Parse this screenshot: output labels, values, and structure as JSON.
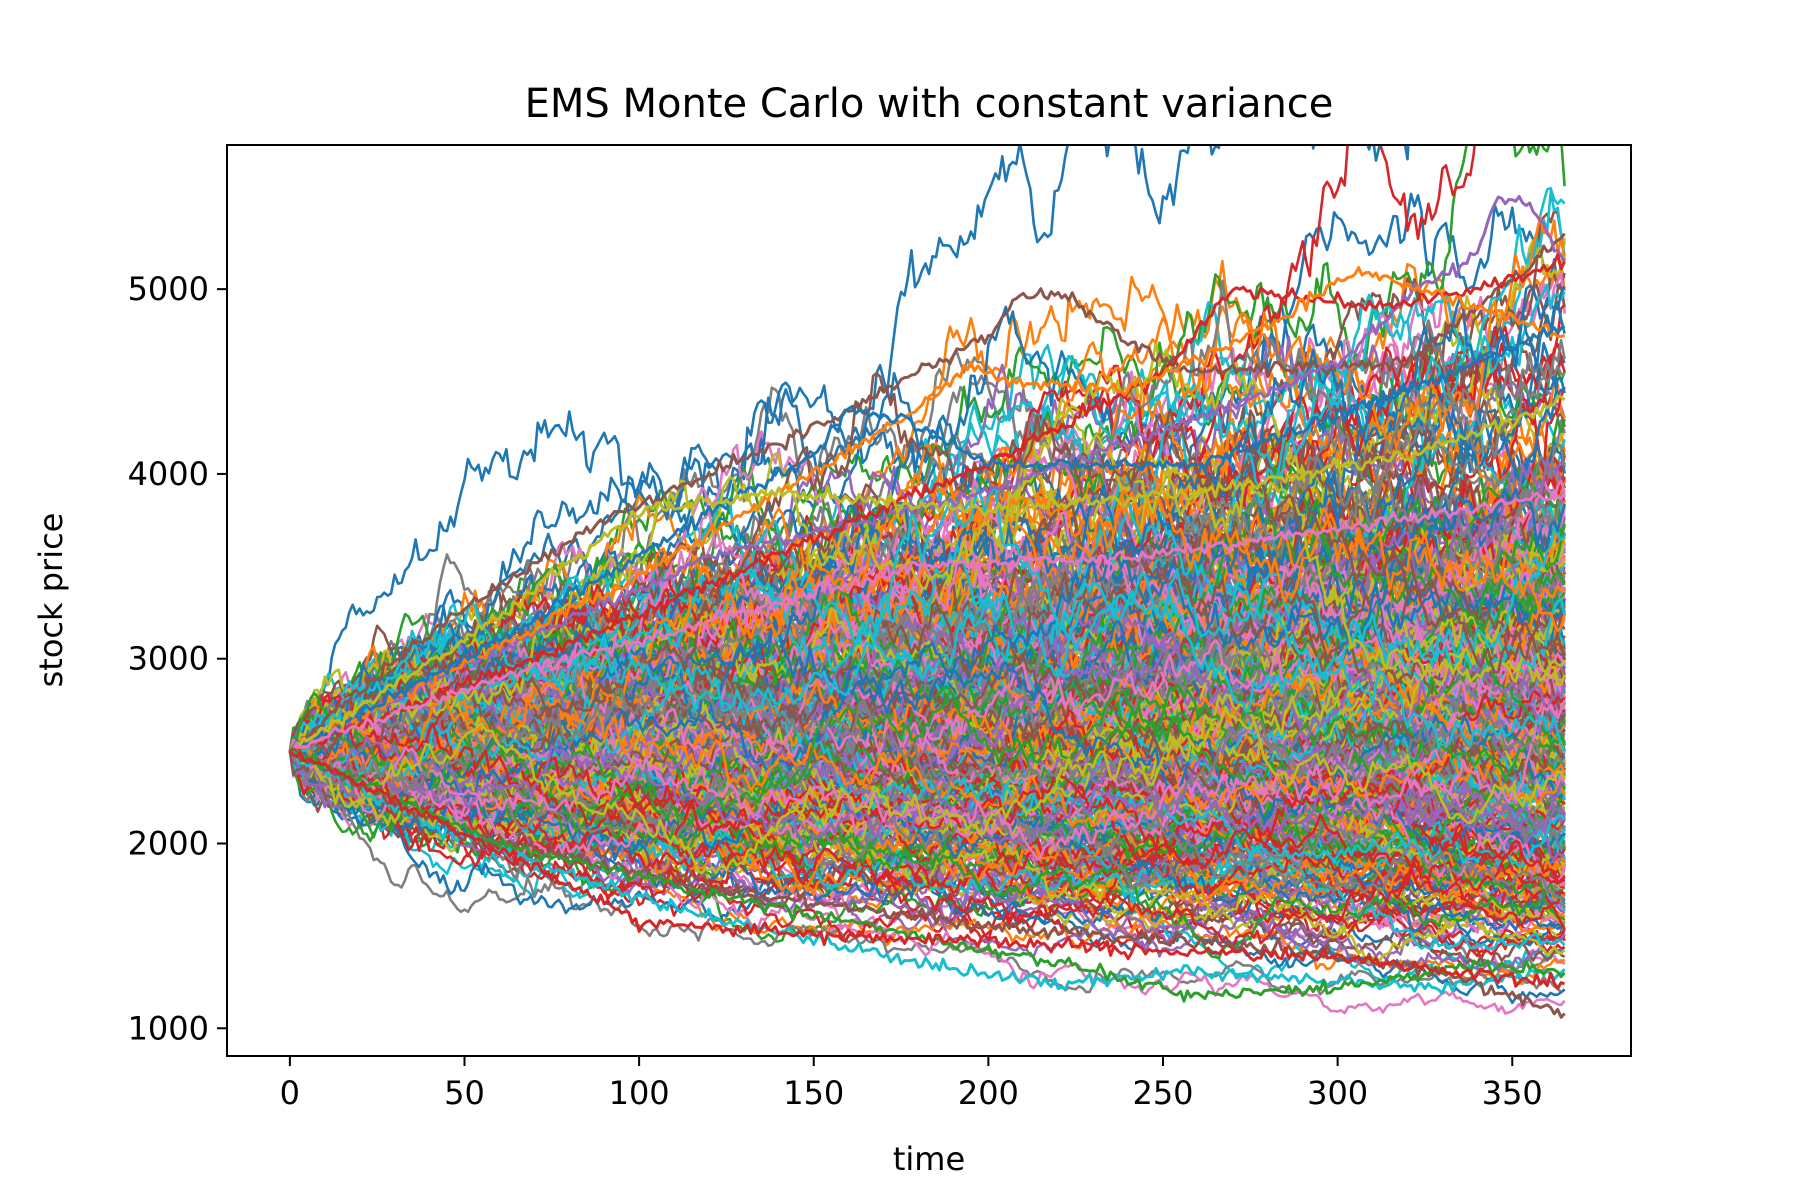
{
  "chart_data": {
    "type": "line",
    "title": "EMS Monte Carlo with constant variance",
    "xlabel": "time",
    "ylabel": "stock price",
    "xlim": [
      -18,
      384
    ],
    "ylim": [
      850,
      5780
    ],
    "x_ticks": [
      0,
      50,
      100,
      150,
      200,
      250,
      300,
      350
    ],
    "y_ticks": [
      1000,
      2000,
      3000,
      4000,
      5000
    ],
    "x_tick_labels": [
      "0",
      "50",
      "100",
      "150",
      "200",
      "250",
      "300",
      "350"
    ],
    "y_tick_labels": [
      "1000",
      "2000",
      "3000",
      "4000",
      "5000"
    ],
    "grid": false,
    "legend": "none",
    "x_range": [
      0,
      365
    ],
    "start_value": 2500,
    "num_paths_approx": 500,
    "highlighted_paths": [
      {
        "color": "#8c564b",
        "points": [
          [
            0,
            2500
          ],
          [
            40,
            3150
          ],
          [
            90,
            3750
          ],
          [
            150,
            4250
          ],
          [
            200,
            4750
          ],
          [
            210,
            4980
          ],
          [
            225,
            4950
          ],
          [
            240,
            4700
          ],
          [
            260,
            4550
          ],
          [
            320,
            4600
          ],
          [
            340,
            4900
          ],
          [
            365,
            5300
          ]
        ]
      },
      {
        "color": "#9467bd",
        "points": [
          [
            0,
            2500
          ],
          [
            60,
            3050
          ],
          [
            120,
            3550
          ],
          [
            200,
            3900
          ],
          [
            260,
            4300
          ],
          [
            300,
            4600
          ],
          [
            320,
            4950
          ],
          [
            340,
            5200
          ],
          [
            346,
            5520
          ],
          [
            355,
            5450
          ],
          [
            365,
            5150
          ]
        ]
      },
      {
        "color": "#d62728",
        "points": [
          [
            0,
            2500
          ],
          [
            70,
            3000
          ],
          [
            150,
            3650
          ],
          [
            200,
            4050
          ],
          [
            250,
            4550
          ],
          [
            270,
            5000
          ],
          [
            290,
            4950
          ],
          [
            310,
            4900
          ],
          [
            340,
            5000
          ],
          [
            365,
            5150
          ]
        ]
      },
      {
        "color": "#ff7f0e",
        "points": [
          [
            0,
            2500
          ],
          [
            100,
            3450
          ],
          [
            180,
            4350
          ],
          [
            195,
            4600
          ],
          [
            205,
            4500
          ],
          [
            240,
            4450
          ],
          [
            280,
            4800
          ],
          [
            305,
            5100
          ],
          [
            340,
            4900
          ],
          [
            365,
            4750
          ]
        ]
      },
      {
        "color": "#1f77b4",
        "points": [
          [
            0,
            2500
          ],
          [
            50,
            3000
          ],
          [
            100,
            3550
          ],
          [
            130,
            3900
          ],
          [
            150,
            4100
          ],
          [
            160,
            4350
          ],
          [
            175,
            4300
          ],
          [
            200,
            4050
          ],
          [
            260,
            4050
          ],
          [
            320,
            4450
          ],
          [
            365,
            4800
          ]
        ]
      },
      {
        "color": "#bcbd22",
        "points": [
          [
            0,
            2500
          ],
          [
            50,
            3100
          ],
          [
            100,
            3800
          ],
          [
            140,
            3900
          ],
          [
            200,
            3800
          ],
          [
            260,
            3900
          ],
          [
            320,
            4100
          ],
          [
            365,
            4400
          ]
        ]
      },
      {
        "color": "#e377c2",
        "points": [
          [
            0,
            2500
          ],
          [
            60,
            2900
          ],
          [
            120,
            3200
          ],
          [
            180,
            3500
          ],
          [
            240,
            3550
          ],
          [
            300,
            3700
          ],
          [
            365,
            3900
          ]
        ]
      },
      {
        "color": "#17becf",
        "points": [
          [
            0,
            2500
          ],
          [
            40,
            2100
          ],
          [
            100,
            1700
          ],
          [
            150,
            1480
          ],
          [
            200,
            1280
          ],
          [
            225,
            1240
          ],
          [
            260,
            1310
          ],
          [
            300,
            1250
          ],
          [
            330,
            1220
          ],
          [
            365,
            1320
          ]
        ]
      },
      {
        "color": "#8c564b",
        "points": [
          [
            0,
            2500
          ],
          [
            50,
            2050
          ],
          [
            120,
            1750
          ],
          [
            200,
            1550
          ],
          [
            270,
            1450
          ],
          [
            320,
            1350
          ],
          [
            365,
            1080
          ]
        ]
      },
      {
        "color": "#2ca02c",
        "points": [
          [
            0,
            2500
          ],
          [
            60,
            2000
          ],
          [
            140,
            1650
          ],
          [
            220,
            1350
          ],
          [
            260,
            1180
          ],
          [
            300,
            1220
          ],
          [
            340,
            1350
          ],
          [
            365,
            1300
          ]
        ]
      },
      {
        "color": "#d62728",
        "points": [
          [
            0,
            2500
          ],
          [
            40,
            2150
          ],
          [
            100,
            1580
          ],
          [
            160,
            1500
          ],
          [
            230,
            1440
          ],
          [
            300,
            1380
          ],
          [
            365,
            1240
          ]
        ]
      }
    ]
  }
}
